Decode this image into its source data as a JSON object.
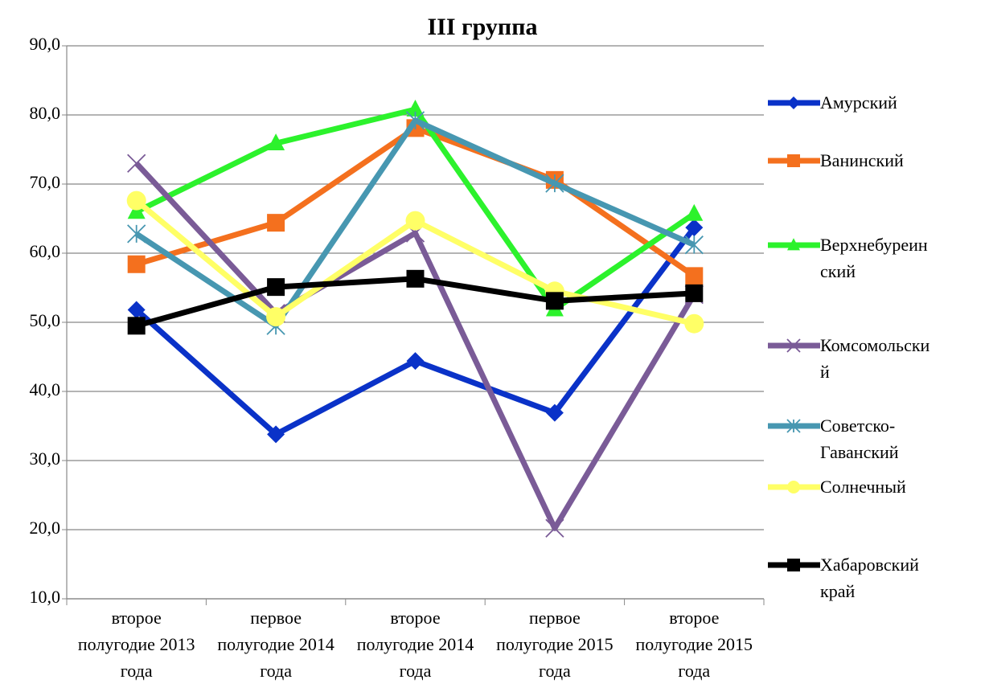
{
  "chart_data": {
    "type": "line",
    "title": "III   группа",
    "categories": [
      "второе полугодие 2013 года",
      "первое полугодие 2014 года",
      "второе полугодие 2014 года",
      "первое полугодие 2015 года",
      "второе полугодие 2015 года"
    ],
    "series": [
      {
        "name": "Амурский",
        "color": "#0a32c8",
        "marker": "diamond",
        "values": [
          51.8,
          33.8,
          44.4,
          36.9,
          63.7
        ]
      },
      {
        "name": "Ванинский",
        "color": "#f4701e",
        "marker": "square",
        "values": [
          58.4,
          64.4,
          78.1,
          70.6,
          56.7
        ]
      },
      {
        "name": "Верхнебуреинский",
        "color": "#2cf22c",
        "marker": "triangle",
        "values": [
          66.0,
          75.9,
          80.8,
          51.9,
          65.7
        ]
      },
      {
        "name": "Комсомольский",
        "color": "#7a5b97",
        "marker": "x",
        "values": [
          73.0,
          51.3,
          62.9,
          20.2,
          54.0
        ]
      },
      {
        "name": "Советско-Гаванский",
        "color": "#4797b1",
        "marker": "asterisk",
        "values": [
          62.8,
          49.5,
          79.2,
          70.1,
          61.2
        ]
      },
      {
        "name": "Солнечный",
        "color": "#ffff66",
        "marker": "circle",
        "values": [
          67.6,
          50.8,
          64.7,
          54.5,
          49.8
        ]
      },
      {
        "name": "Хабаровский край",
        "color": "#000000",
        "marker": "square",
        "values": [
          49.5,
          55.1,
          56.3,
          53.1,
          54.2
        ]
      }
    ],
    "ylim": [
      10,
      90
    ],
    "yticks": [
      {
        "value": 10,
        "label": "10,0"
      },
      {
        "value": 20,
        "label": "20,0"
      },
      {
        "value": 30,
        "label": "30,0"
      },
      {
        "value": 40,
        "label": "40,0"
      },
      {
        "value": 50,
        "label": "50,0"
      },
      {
        "value": 60,
        "label": "60,0"
      },
      {
        "value": 70,
        "label": "70,0"
      },
      {
        "value": 80,
        "label": "80,0"
      },
      {
        "value": 90,
        "label": "90,0"
      }
    ],
    "grid": true,
    "legend": "right"
  }
}
